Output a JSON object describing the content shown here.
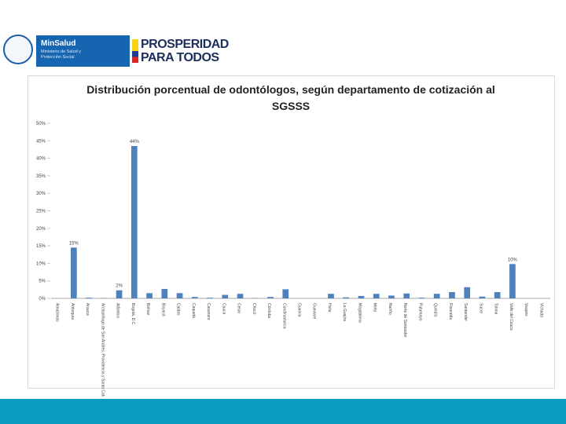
{
  "header": {
    "ministry_name": "MinSalud",
    "ministry_subtitle": "Ministerio de Salud y Protección Social",
    "slogan_line1": "PROSPERIDAD",
    "slogan_line2": "PARA TODOS"
  },
  "chart_data": {
    "type": "bar",
    "title": "Distribución porcentual de odontólogos, según departamento de cotización al SGSSS",
    "categories": [
      "Amazonas",
      "Antioquia",
      "Arauca",
      "Archipiélago de San Andrés, Providencia y Santa Catalina",
      "Atlántico",
      "Bogotá, D.C.",
      "Bolívar",
      "Boyacá",
      "Caldas",
      "Caquetá",
      "Casanare",
      "Cauca",
      "Cesar",
      "Chocó",
      "Córdoba",
      "Cundinamarca",
      "Guainía",
      "Guaviare",
      "Huila",
      "La Guajira",
      "Magdalena",
      "Meta",
      "Nariño",
      "Norte de Santander",
      "Putumayo",
      "Quindío",
      "Risaralda",
      "Santander",
      "Sucre",
      "Tolima",
      "Valle del Cauca",
      "Vaupés",
      "Vichada"
    ],
    "values": [
      0,
      14.5,
      0.2,
      0.1,
      2.3,
      43.5,
      1.5,
      2.7,
      1.5,
      0.4,
      0.2,
      1.0,
      1.3,
      0.1,
      0.4,
      2.6,
      0,
      0,
      1.3,
      0.3,
      0.7,
      1.3,
      0.8,
      1.4,
      0.2,
      1.3,
      1.8,
      3.2,
      0.5,
      1.8,
      9.8,
      0,
      0
    ],
    "value_labels": [
      null,
      "15%",
      null,
      null,
      "2%",
      "44%",
      null,
      null,
      null,
      null,
      null,
      null,
      null,
      null,
      null,
      null,
      null,
      null,
      null,
      null,
      null,
      null,
      null,
      null,
      null,
      null,
      null,
      null,
      null,
      null,
      "10%",
      null,
      null
    ],
    "color": "#4f81bd",
    "ylim": [
      0,
      50
    ],
    "yticks": [
      {
        "value": 0,
        "label": "0%"
      },
      {
        "value": 5,
        "label": "5%"
      },
      {
        "value": 10,
        "label": "10%"
      },
      {
        "value": 15,
        "label": "15%"
      },
      {
        "value": 20,
        "label": "20%"
      },
      {
        "value": 25,
        "label": "25%"
      },
      {
        "value": 30,
        "label": "30%"
      },
      {
        "value": 35,
        "label": "35%"
      },
      {
        "value": 40,
        "label": "40%"
      },
      {
        "value": 45,
        "label": "45%"
      },
      {
        "value": 50,
        "label": "50%"
      }
    ],
    "grid": false
  }
}
